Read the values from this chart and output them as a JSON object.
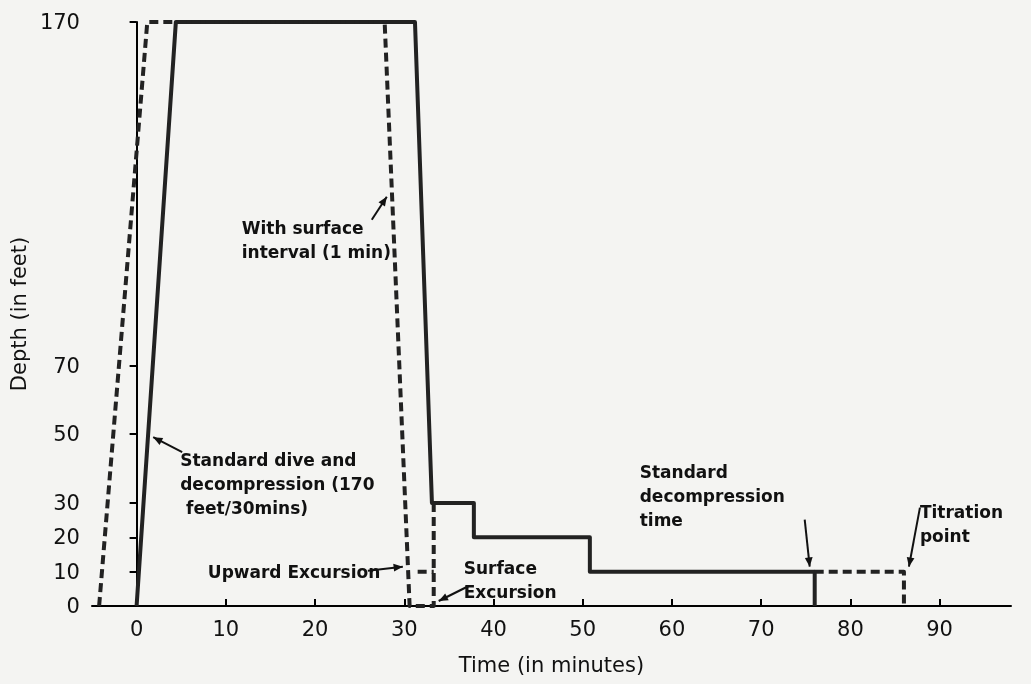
{
  "chart_data": {
    "type": "line",
    "xlabel": "Time (in minutes)",
    "ylabel": "Depth (in feet)",
    "xlim": [
      -5,
      98
    ],
    "xticks": [
      0,
      10,
      20,
      30,
      40,
      50,
      60,
      70,
      80,
      90
    ],
    "ylim": [
      0,
      170
    ],
    "yticks": [
      0,
      10,
      20,
      30,
      50,
      70,
      170
    ],
    "marker": "none",
    "series": [
      {
        "color": "#222222",
        "line_style": "solid",
        "x": [
          0,
          4.4,
          31.2,
          33.1,
          37.8,
          37.8,
          50.8,
          50.8,
          76,
          76
        ],
        "values": [
          0,
          170,
          170,
          30,
          30,
          20,
          20,
          10,
          10,
          0
        ]
      },
      {
        "color": "#222222",
        "line_style": "dashed",
        "x": [
          -4.2,
          1.2,
          27.8,
          30.6,
          33.3,
          33.3
        ],
        "values": [
          0,
          170,
          170,
          0,
          0,
          30
        ]
      },
      {
        "color": "#222222",
        "line_style": "dashed",
        "x": [
          31.5,
          33.3
        ],
        "values": [
          10,
          10
        ]
      },
      {
        "color": "#222222",
        "line_style": "dashed",
        "x": [
          76,
          86,
          86
        ],
        "values": [
          10,
          10,
          0
        ]
      }
    ],
    "annotations": [
      {
        "text": "With surface interval (1 min)",
        "x": 28.6,
        "y": 120
      },
      {
        "text": "Standard dive and decompression (170 feet/30mins)",
        "x": 1.3,
        "y": 50
      },
      {
        "text": "Upward Excursion",
        "x": 30.4,
        "y": 10
      },
      {
        "text": "Surface Excursion",
        "x": 33.3,
        "y": 0
      },
      {
        "text": "Standard decompression time",
        "x": 76,
        "y": 10
      },
      {
        "text": "Titration point",
        "x": 86,
        "y": 10
      }
    ]
  }
}
